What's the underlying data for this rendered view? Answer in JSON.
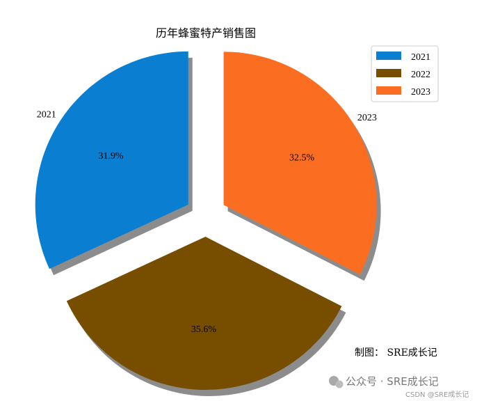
{
  "chart_data": {
    "type": "pie",
    "title": "历年蜂蜜特产销售图",
    "categories": [
      "2021",
      "2022",
      "2023"
    ],
    "values": [
      31.9,
      35.6,
      32.5
    ],
    "value_labels": [
      "31.9%",
      "35.6%",
      "32.5%"
    ],
    "colors": [
      "#0a7fd2",
      "#774e00",
      "#fb6e22"
    ],
    "explode": true,
    "shadow": true,
    "legend": {
      "entries": [
        "2021",
        "2022",
        "2023"
      ],
      "placement": "top-right"
    }
  },
  "credit": "制图：  SRE成长记",
  "watermark": {
    "main": "公众号 · SRE成长记",
    "sub": "CSDN @SRE成长记"
  }
}
